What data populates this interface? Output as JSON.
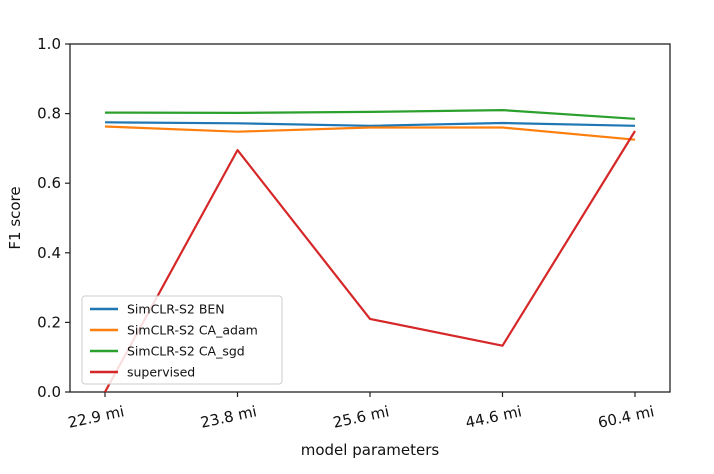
{
  "chart_data": {
    "type": "line",
    "xlabel": "model parameters",
    "ylabel": "F1 score",
    "categories": [
      "22.9 mi",
      "23.8 mi",
      "25.6 mi",
      "44.6 mi",
      "60.4 mi"
    ],
    "ylim": [
      0.0,
      1.0
    ],
    "yticks": [
      "0.0",
      "0.2",
      "0.4",
      "0.6",
      "0.8",
      "1.0"
    ],
    "grid": false,
    "legend_position": "lower-left",
    "series": [
      {
        "name": "SimCLR-S2 BEN",
        "color": "#1f77b4",
        "values": [
          0.775,
          0.772,
          0.765,
          0.773,
          0.765
        ]
      },
      {
        "name": "SimCLR-S2 CA_adam",
        "color": "#ff7f0e",
        "values": [
          0.763,
          0.748,
          0.76,
          0.76,
          0.725
        ]
      },
      {
        "name": "SimCLR-S2 CA_sgd",
        "color": "#2ca02c",
        "values": [
          0.803,
          0.802,
          0.805,
          0.81,
          0.785
        ]
      },
      {
        "name": "supervised",
        "color": "#d62728",
        "values": [
          0.0,
          0.695,
          0.21,
          0.133,
          0.75
        ]
      }
    ]
  }
}
